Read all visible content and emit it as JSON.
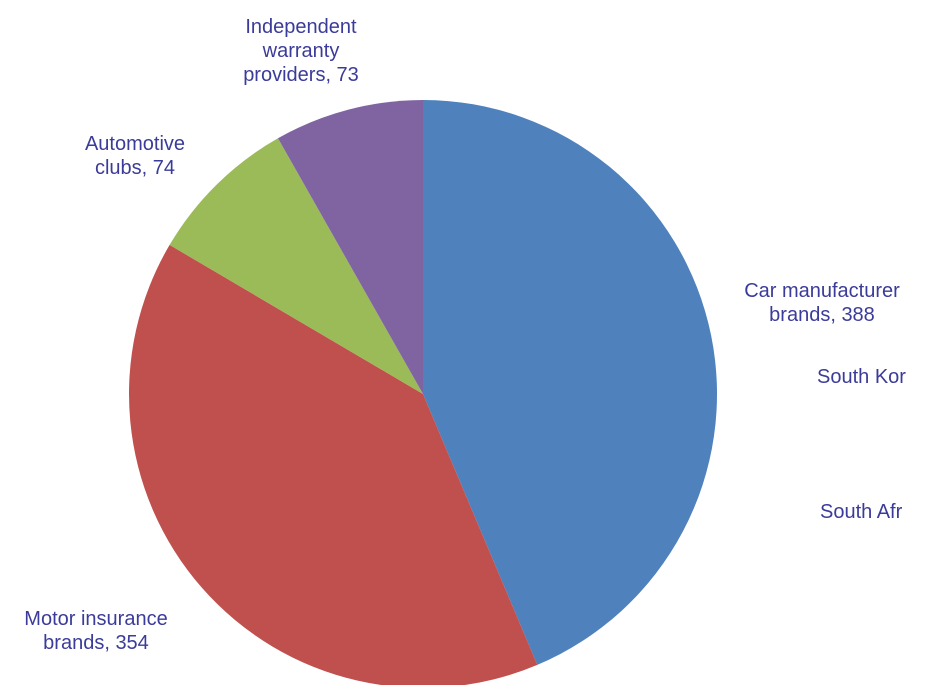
{
  "chart_data": {
    "type": "pie",
    "title": "",
    "label_color": "#3b3b9a",
    "slices": [
      {
        "name": "Car manufacturer brands",
        "value": 388,
        "label_lines": [
          "Car manufacturer",
          "brands, 388"
        ],
        "color": "#4f81bd"
      },
      {
        "name": "Motor insurance brands",
        "value": 354,
        "label_lines": [
          "Motor insurance",
          "brands, 354"
        ],
        "color": "#c0504d"
      },
      {
        "name": "Automotive clubs",
        "value": 74,
        "label_lines": [
          "Automotive",
          "clubs, 74"
        ],
        "color": "#9bbb59"
      },
      {
        "name": "Independent warranty providers",
        "value": 73,
        "label_lines": [
          "Independent",
          "warranty",
          "providers, 73"
        ],
        "color": "#8064a2"
      }
    ],
    "overflow_labels": [
      "South Kor",
      "South Afr"
    ]
  }
}
